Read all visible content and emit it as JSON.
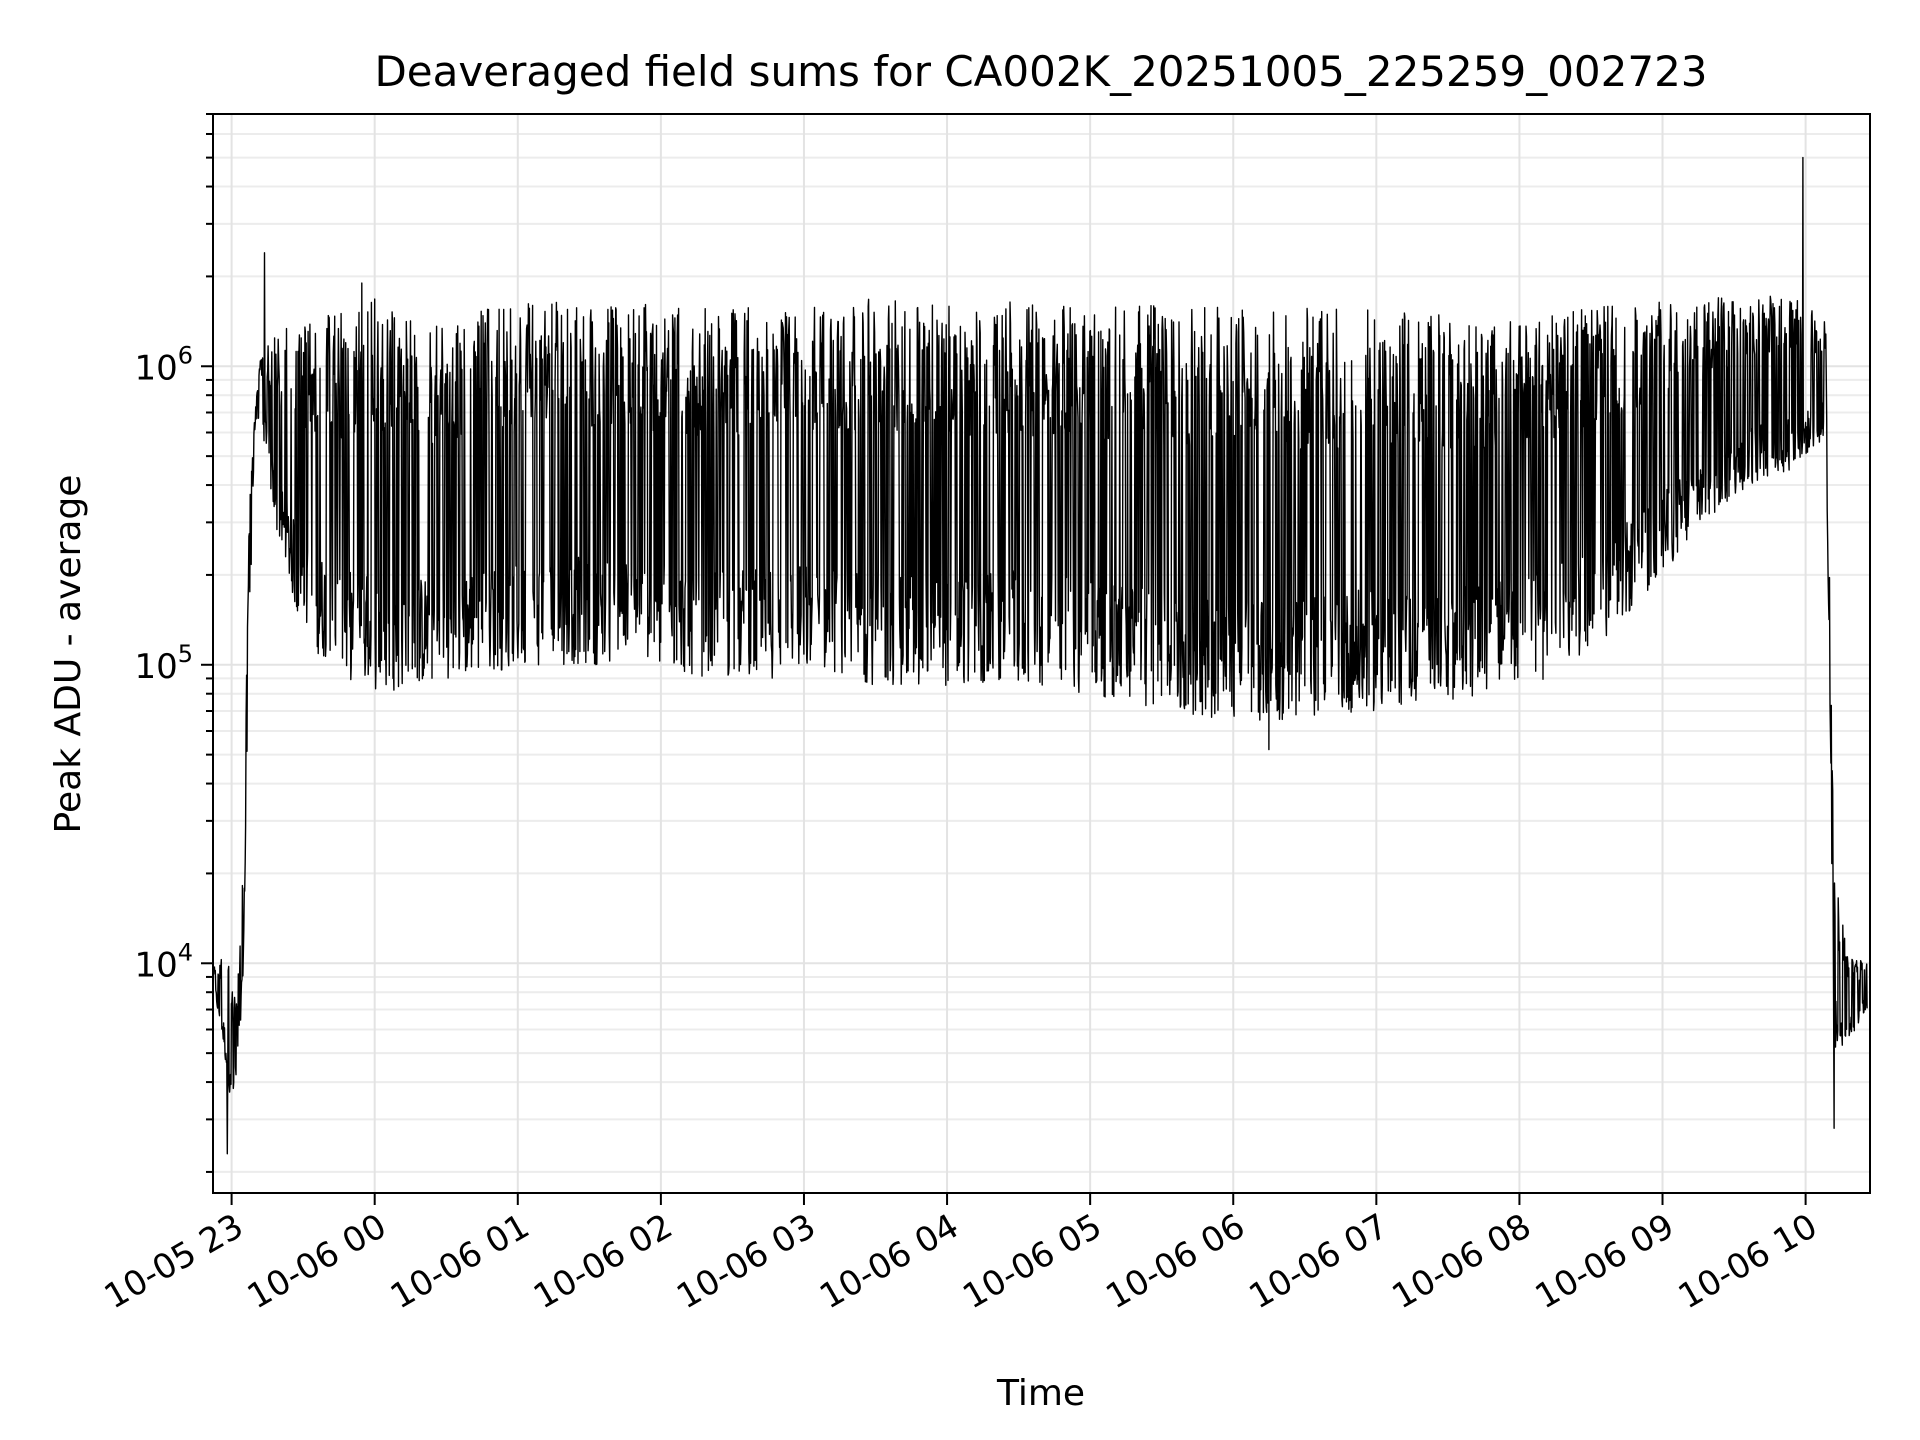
{
  "chart_data": {
    "type": "line",
    "title": "Deaveraged field sums for CA002K_20251005_225259_002723",
    "xlabel": "Time",
    "ylabel": "Peak ADU - average",
    "yscale": "log",
    "ylim": [
      1700,
      7000000
    ],
    "xlim_hours": [
      -0.13,
      11.45
    ],
    "grid": true,
    "legend": "none",
    "series_color": "#000000",
    "x_ticks": [
      {
        "hours": 0,
        "label": "10-05 23"
      },
      {
        "hours": 1,
        "label": "10-06 00"
      },
      {
        "hours": 2,
        "label": "10-06 01"
      },
      {
        "hours": 3,
        "label": "10-06 02"
      },
      {
        "hours": 4,
        "label": "10-06 03"
      },
      {
        "hours": 5,
        "label": "10-06 04"
      },
      {
        "hours": 6,
        "label": "10-06 05"
      },
      {
        "hours": 7,
        "label": "10-06 06"
      },
      {
        "hours": 8,
        "label": "10-06 07"
      },
      {
        "hours": 9,
        "label": "10-06 08"
      },
      {
        "hours": 10,
        "label": "10-06 09"
      },
      {
        "hours": 11,
        "label": "10-06 10"
      }
    ],
    "y_ticks": [
      {
        "value": 10000,
        "base": "10",
        "exp": "4"
      },
      {
        "value": 100000,
        "base": "10",
        "exp": "5"
      },
      {
        "value": 1000000,
        "base": "10",
        "exp": "6"
      }
    ],
    "series": [
      {
        "name": "field sums",
        "envelope": {
          "hours": [
            -0.12,
            -0.05,
            0.0,
            0.04,
            0.08,
            0.12,
            0.16,
            0.2,
            0.3,
            0.5,
            0.8,
            1.0,
            1.3,
            1.5,
            1.9,
            2.3,
            2.6,
            3.0,
            3.4,
            3.8,
            4.2,
            4.5,
            5.0,
            5.5,
            6.0,
            6.5,
            7.0,
            7.3,
            7.6,
            8.0,
            8.4,
            8.8,
            9.2,
            9.6,
            10.0,
            10.3,
            10.6,
            10.9,
            11.0,
            11.1,
            11.14,
            11.16,
            11.2,
            11.3,
            11.43
          ],
          "upper": [
            10000,
            11000,
            9000,
            8500,
            20000,
            300000,
            700000,
            1100000,
            1300000,
            1400000,
            1550000,
            1700000,
            1400000,
            1450000,
            1600000,
            1650000,
            1600000,
            1650000,
            1550000,
            1600000,
            1600000,
            1700000,
            1650000,
            1650000,
            1650000,
            1650000,
            1600000,
            1600000,
            1600000,
            1600000,
            1500000,
            1400000,
            1500000,
            1600000,
            1650000,
            1700000,
            1750000,
            1750000,
            1600000,
            1500000,
            1400000,
            400000,
            20000,
            11000,
            10000
          ],
          "lower": [
            8000,
            5000,
            3000,
            4000,
            8000,
            100000,
            600000,
            700000,
            300000,
            120000,
            90000,
            80000,
            85000,
            90000,
            95000,
            100000,
            100000,
            95000,
            90000,
            90000,
            95000,
            85000,
            85000,
            85000,
            80000,
            70000,
            65000,
            65000,
            68000,
            70000,
            75000,
            80000,
            90000,
            120000,
            200000,
            300000,
            400000,
            450000,
            500000,
            550000,
            600000,
            150000,
            5000,
            5500,
            7000
          ]
        },
        "peaks": [
          {
            "hours": 0.23,
            "value": 2400000
          },
          {
            "hours": 0.91,
            "value": 1900000
          },
          {
            "hours": 10.98,
            "value": 5000000
          }
        ],
        "troughs": [
          {
            "hours": -0.03,
            "value": 2300
          },
          {
            "hours": 11.2,
            "value": 2800
          },
          {
            "hours": 7.25,
            "value": 52000
          }
        ]
      }
    ]
  }
}
